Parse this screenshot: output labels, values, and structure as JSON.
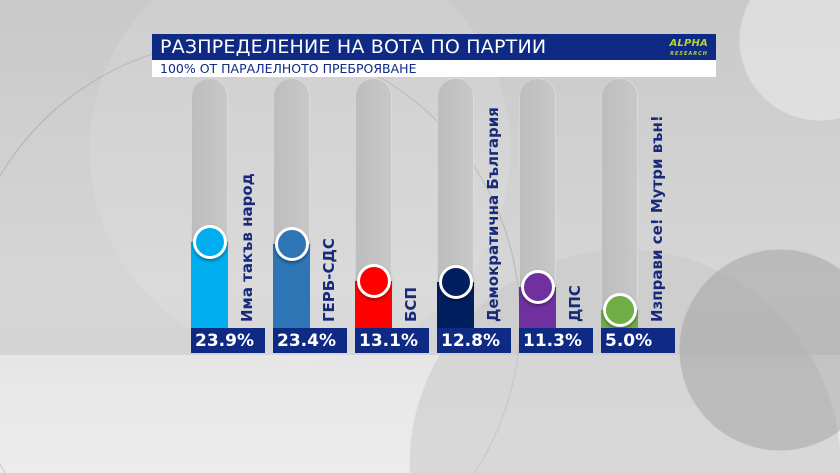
{
  "title": "РАЗПРЕДЕЛЕНИЕ НА ВОТА ПО ПАРТИИ",
  "subtitle": "100% ОТ ПАРАЛЕЛНОТО ПРЕБРОЯВАНЕ",
  "logo": {
    "name": "ALPHA",
    "sub": "RESEARCH"
  },
  "chart_data": {
    "type": "bar",
    "title": "РАЗПРЕДЕЛЕНИЕ НА ВОТА ПО ПАРТИИ",
    "subtitle": "100% ОТ ПАРАЛЕЛНОТО ПРЕБРОЯВАНЕ",
    "categories": [
      "Има такъв народ",
      "ГЕРБ-СДС",
      "БСП",
      "Демократична България",
      "ДПС",
      "Изправи се! Мутри вън!"
    ],
    "values": [
      23.9,
      23.4,
      13.1,
      12.8,
      11.3,
      5.0
    ],
    "value_labels": [
      "23.9%",
      "23.4%",
      "13.1%",
      "12.8%",
      "11.3%",
      "5.0%"
    ],
    "colors": [
      "#00aeef",
      "#2e75b6",
      "#ff0000",
      "#001f5f",
      "#7030a0",
      "#70ad47"
    ],
    "unit": "%",
    "grid": false
  }
}
